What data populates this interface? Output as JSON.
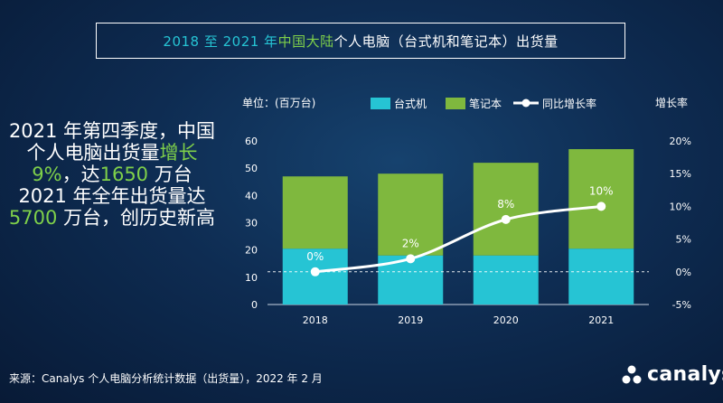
{
  "header": {
    "title_parts": [
      "2018 至 2021 年",
      "中国大陆",
      "个人电脑（台式机和笔记本）出货量"
    ]
  },
  "headline": {
    "parts": [
      "2021 年第四季度，中国个人电脑出货量",
      "增长 9%",
      "，达",
      "1650",
      " 万台",
      "2021 年全年出货量达",
      "5700",
      " 万台，创历史新高"
    ]
  },
  "footer": {
    "source": "来源：Canalys 个人电脑分析统计数据（出货量），2022 年 2 月"
  },
  "logo": {
    "name": "canalys",
    "icon": "canalys-logo-icon"
  },
  "colors": {
    "desktop": "#26c4d4",
    "notebook": "#7fb83e",
    "growth_line": "#ffffff",
    "accent_green": "#7fd04a"
  },
  "chart_data": {
    "type": "bar",
    "stacked": true,
    "categories": [
      "2018",
      "2019",
      "2020",
      "2021"
    ],
    "series": [
      {
        "name": "台式机",
        "values": [
          20.5,
          18,
          18,
          20.5
        ],
        "color": "#26c4d4"
      },
      {
        "name": "笔记本",
        "values": [
          26.5,
          30,
          34,
          36.5
        ],
        "color": "#7fb83e"
      }
    ],
    "line_series": {
      "name": "同比增长率",
      "values": [
        0,
        2,
        8,
        10
      ],
      "labels": [
        "0%",
        "2%",
        "8%",
        "10%"
      ]
    },
    "ylabel_left": "单位：(百万台)",
    "ylabel_right": "增长率",
    "ylim_left": [
      0,
      60
    ],
    "yticks_left": [
      "0",
      "10",
      "20",
      "30",
      "40",
      "50",
      "60"
    ],
    "ylim_right": [
      -5,
      20
    ],
    "yticks_right": [
      "-5%",
      "0%",
      "5%",
      "10%",
      "15%",
      "20%"
    ],
    "grid": false,
    "zero_line_dashed": true,
    "legend_position": "top"
  }
}
